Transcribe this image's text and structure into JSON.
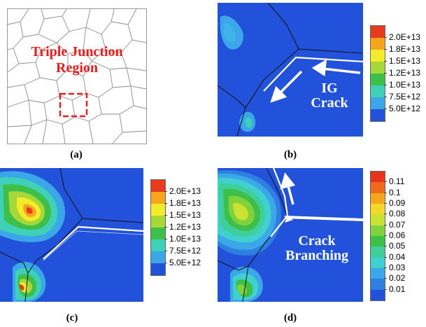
{
  "panel_a": {
    "label_line1": "Triple Junction",
    "label_line2": "Region",
    "caption": "(a)"
  },
  "panel_b": {
    "text_line1": "IG",
    "text_line2": "Crack",
    "caption": "(b)",
    "colorbar": {
      "labels": [
        "2.0E+13",
        "1.8E+13",
        "1.5E+13",
        "1.2E+13",
        "1.0E+13",
        "7.5E+12",
        "5.0E+12"
      ],
      "colors": [
        "#e83a1c",
        "#f5a61e",
        "#f2ec2b",
        "#a6d83a",
        "#3dbf4a",
        "#3fd0b8",
        "#3ba7e8",
        "#2152d9"
      ]
    }
  },
  "panel_c": {
    "caption": "(c)",
    "colorbar": {
      "labels": [
        "2.0E+13",
        "1.8E+13",
        "1.5E+13",
        "1.2E+13",
        "1.0E+13",
        "7.5E+12",
        "5.0E+12"
      ],
      "colors": [
        "#e83a1c",
        "#f5a61e",
        "#f2ec2b",
        "#a6d83a",
        "#3dbf4a",
        "#3fd0b8",
        "#3ba7e8",
        "#2152d9"
      ]
    }
  },
  "panel_d": {
    "text_line1": "Crack",
    "text_line2": "Branching",
    "caption": "(d)",
    "colorbar": {
      "labels": [
        "0.11",
        "0.1",
        "0.09",
        "0.08",
        "0.07",
        "0.06",
        "0.05",
        "0.04",
        "0.03",
        "0.02",
        "0.01"
      ],
      "colors": [
        "#e8321c",
        "#f06a1e",
        "#f5a61e",
        "#f2d82b",
        "#c9e233",
        "#7fd23c",
        "#3dbf4a",
        "#3fcf9a",
        "#3fd0cf",
        "#3ba7e8",
        "#2f7fe0",
        "#2152d9"
      ]
    }
  }
}
